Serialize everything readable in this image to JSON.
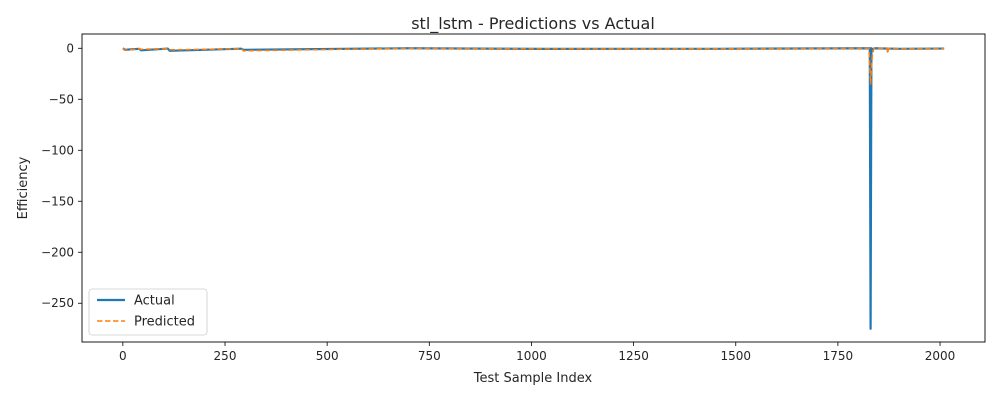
{
  "chart_data": {
    "type": "line",
    "title": "stl_lstm - Predictions vs Actual",
    "xlabel": "Test Sample Index",
    "ylabel": "Efficiency",
    "xlim": [
      -100,
      2110
    ],
    "ylim": [
      -288,
      14
    ],
    "xticks": [
      0,
      250,
      500,
      750,
      1000,
      1250,
      1500,
      1750,
      2000
    ],
    "xtick_labels": [
      "0",
      "250",
      "500",
      "750",
      "1000",
      "1250",
      "1500",
      "1750",
      "2000"
    ],
    "yticks": [
      0,
      -50,
      -100,
      -150,
      -200,
      -250
    ],
    "ytick_labels": [
      "0",
      "−50",
      "−100",
      "−150",
      "−200",
      "−250"
    ],
    "grid": false,
    "legend_position": "lower-left",
    "series": [
      {
        "name": "Actual",
        "color": "#1f77b4",
        "style": "solid",
        "x": [
          0,
          5,
          40,
          45,
          110,
          115,
          290,
          295,
          700,
          1030,
          1450,
          1828,
          1830,
          1832,
          1834,
          1840,
          1900,
          2010
        ],
        "y": [
          0,
          -1.5,
          -0.5,
          -2,
          -0.3,
          -2.5,
          -0.4,
          -1.5,
          0,
          -0.6,
          -0.5,
          0,
          -275,
          0,
          -1,
          0,
          -0.5,
          -0.3
        ]
      },
      {
        "name": "Predicted",
        "color": "#ff7f0e",
        "style": "dashed",
        "x": [
          0,
          5,
          40,
          45,
          110,
          115,
          290,
          295,
          700,
          1030,
          1450,
          1826,
          1830,
          1834,
          1838,
          1870,
          1872,
          1874,
          1900,
          2010
        ],
        "y": [
          0,
          -2,
          -0.5,
          -1,
          -0.3,
          -1.5,
          -0.4,
          -2.5,
          0,
          -0.6,
          -0.5,
          0,
          -35,
          -8,
          0,
          0,
          -5,
          0,
          -0.5,
          -0.3
        ]
      }
    ]
  }
}
